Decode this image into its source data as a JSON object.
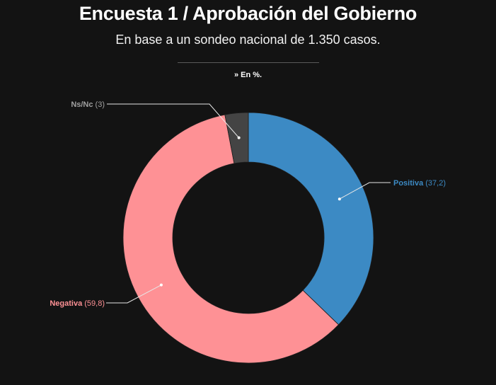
{
  "title": "Encuesta 1 / Aprobación del Gobierno",
  "subtitle": "En base a un sondeo nacional de 1.350 casos.",
  "unit_note": "» En %.",
  "chart_data": {
    "type": "pie",
    "donut": true,
    "slices": [
      {
        "name": "Positiva",
        "value": 37.2,
        "value_label": "(37,2)",
        "color": "#3c8ac4"
      },
      {
        "name": "Negativa",
        "value": 59.8,
        "value_label": "(59,8)",
        "color": "#fe9195"
      },
      {
        "name": "Ns/Nc",
        "value": 3,
        "value_label": "(3)",
        "color": "#444444"
      }
    ],
    "label_colors": {
      "Positiva": "#3c8ac4",
      "Negativa": "#fe9195",
      "Ns/Nc": "#a0a0a0"
    }
  }
}
